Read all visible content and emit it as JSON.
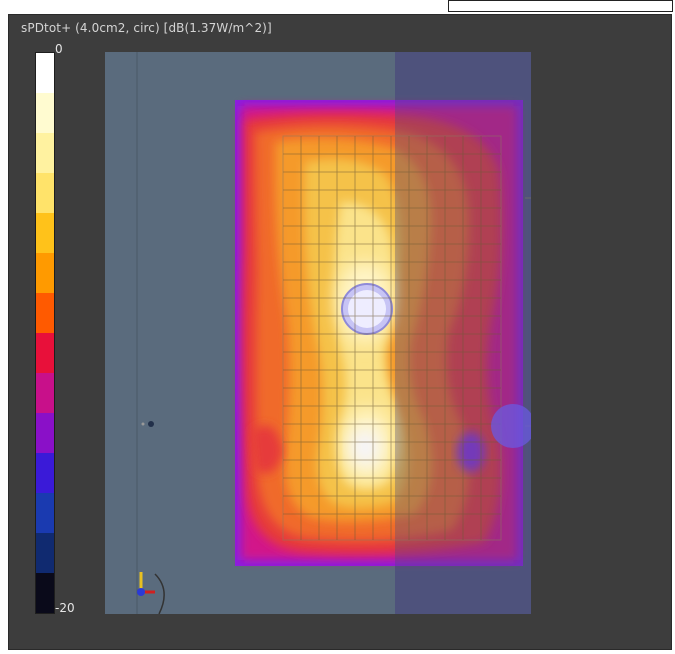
{
  "title": "sPDtot+ (4.0cm2, circ) [dB(1.37W/m^2)]",
  "colorbar": {
    "max_label": "0",
    "min_label": "-20",
    "colors": [
      "#ffffff",
      "#fffbd0",
      "#fff2a0",
      "#ffe36a",
      "#ffc21a",
      "#ff9a00",
      "#ff5a00",
      "#e8103a",
      "#c8108a",
      "#8a10c8",
      "#3a1ad8",
      "#1a3ab0",
      "#102a70",
      "#0a0a1a"
    ]
  },
  "icons": {
    "axes": "axes-triad-icon",
    "origin": "origin-marker-icon",
    "probe": "probe-disc-icon"
  }
}
